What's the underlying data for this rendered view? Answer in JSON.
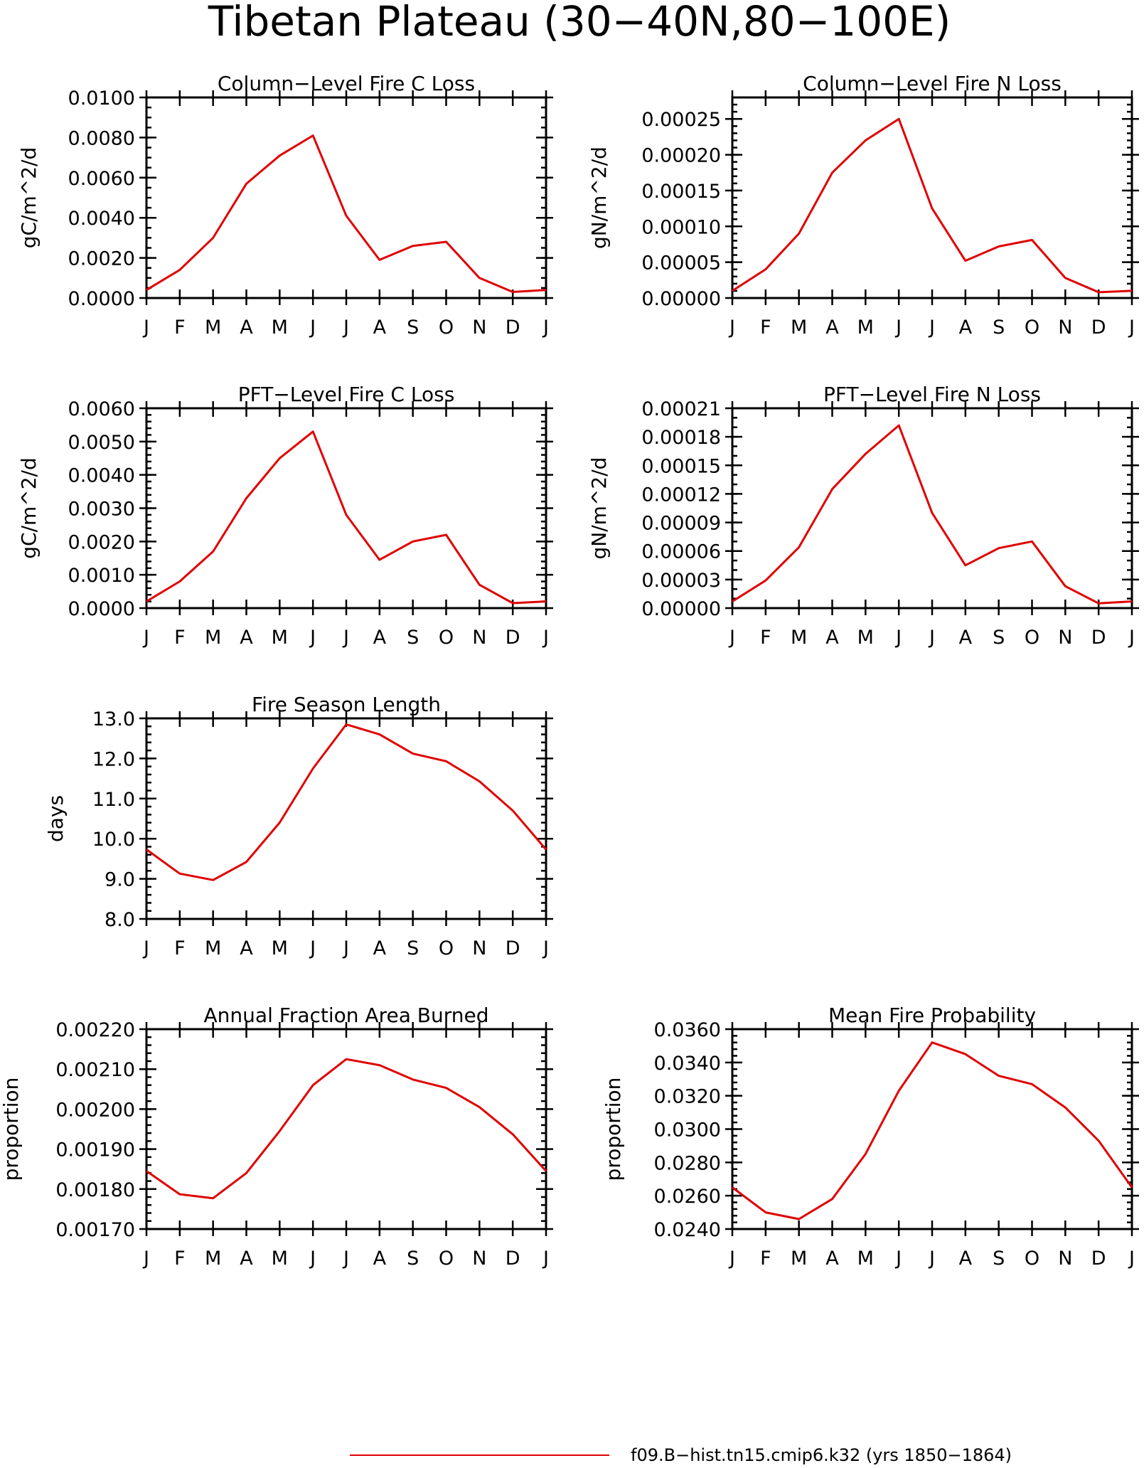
{
  "figure": {
    "title": "Tibetan Plateau (30−40N,80−100E)",
    "legend": {
      "label": "f09.B−hist.tn15.cmip6.k32 (yrs 1850−1864)",
      "color": "#e00000"
    }
  },
  "chart_data": [
    {
      "type": "line",
      "title": "Column−Level Fire C Loss",
      "xlabel": "",
      "ylabel": "gC/m^2/d",
      "categories": [
        "J",
        "F",
        "M",
        "A",
        "M",
        "J",
        "J",
        "A",
        "S",
        "O",
        "N",
        "D",
        "J"
      ],
      "yticks": [
        "0.0000",
        "0.0020",
        "0.0040",
        "0.0060",
        "0.0080",
        "0.0100"
      ],
      "ylim": [
        0,
        0.01
      ],
      "minor_step": 0.0005,
      "series": [
        {
          "values": [
            0.0004,
            0.0014,
            0.003,
            0.0057,
            0.0071,
            0.0081,
            0.0041,
            0.0019,
            0.0026,
            0.0028,
            0.001,
            0.0003,
            0.0004
          ]
        }
      ]
    },
    {
      "type": "line",
      "title": "Column−Level Fire N Loss",
      "xlabel": "",
      "ylabel": "gN/m^2/d",
      "categories": [
        "J",
        "F",
        "M",
        "A",
        "M",
        "J",
        "J",
        "A",
        "S",
        "O",
        "N",
        "D",
        "J"
      ],
      "yticks": [
        "0.00000",
        "0.00005",
        "0.00010",
        "0.00015",
        "0.00020",
        "0.00025"
      ],
      "ylim": [
        0,
        0.00028
      ],
      "minor_step": 1e-05,
      "series": [
        {
          "values": [
            1e-05,
            4e-05,
            9e-05,
            0.000175,
            0.00022,
            0.00025,
            0.000125,
            5.2e-05,
            7.2e-05,
            8.1e-05,
            2.8e-05,
            8e-06,
            1e-05
          ]
        }
      ]
    },
    {
      "type": "line",
      "title": "PFT−Level Fire C Loss",
      "xlabel": "",
      "ylabel": "gC/m^2/d",
      "categories": [
        "J",
        "F",
        "M",
        "A",
        "M",
        "J",
        "J",
        "A",
        "S",
        "O",
        "N",
        "D",
        "J"
      ],
      "yticks": [
        "0.0000",
        "0.0010",
        "0.0020",
        "0.0030",
        "0.0040",
        "0.0050",
        "0.0060"
      ],
      "ylim": [
        0,
        0.006
      ],
      "minor_step": 0.0002,
      "series": [
        {
          "values": [
            0.0002,
            0.0008,
            0.0017,
            0.0033,
            0.0045,
            0.0053,
            0.0028,
            0.00145,
            0.002,
            0.0022,
            0.0007,
            0.00015,
            0.0002
          ]
        }
      ]
    },
    {
      "type": "line",
      "title": "PFT−Level Fire N Loss",
      "xlabel": "",
      "ylabel": "gN/m^2/d",
      "categories": [
        "J",
        "F",
        "M",
        "A",
        "M",
        "J",
        "J",
        "A",
        "S",
        "O",
        "N",
        "D",
        "J"
      ],
      "yticks": [
        "0.00000",
        "0.00003",
        "0.00006",
        "0.00009",
        "0.00012",
        "0.00015",
        "0.00018",
        "0.00021"
      ],
      "ylim": [
        0,
        0.00021
      ],
      "minor_step": 1e-05,
      "series": [
        {
          "values": [
            7e-06,
            2.9e-05,
            6.4e-05,
            0.000125,
            0.000162,
            0.000192,
            0.0001,
            4.5e-05,
            6.3e-05,
            7e-05,
            2.3e-05,
            5e-06,
            7e-06
          ]
        }
      ]
    },
    {
      "type": "line",
      "title": "Fire Season Length",
      "xlabel": "",
      "ylabel": "days",
      "categories": [
        "J",
        "F",
        "M",
        "A",
        "M",
        "J",
        "J",
        "A",
        "S",
        "O",
        "N",
        "D",
        "J"
      ],
      "yticks": [
        "8.0",
        "9.0",
        "10.0",
        "11.0",
        "12.0",
        "13.0"
      ],
      "ylim": [
        8,
        13
      ],
      "minor_step": 0.2,
      "series": [
        {
          "values": [
            9.73,
            9.13,
            8.97,
            9.42,
            10.4,
            11.75,
            12.85,
            12.6,
            12.12,
            11.93,
            11.43,
            10.7,
            9.73
          ]
        }
      ]
    },
    {
      "type": "line",
      "title": "Annual Fraction Area Burned",
      "xlabel": "",
      "ylabel": "proportion",
      "categories": [
        "J",
        "F",
        "M",
        "A",
        "M",
        "J",
        "J",
        "A",
        "S",
        "O",
        "N",
        "D",
        "J"
      ],
      "yticks": [
        "0.00170",
        "0.00180",
        "0.00190",
        "0.00200",
        "0.00210",
        "0.00220"
      ],
      "ylim": [
        0.0017,
        0.0022
      ],
      "minor_step": 2e-05,
      "series": [
        {
          "values": [
            0.001845,
            0.001787,
            0.001777,
            0.00184,
            0.001945,
            0.00206,
            0.002125,
            0.00211,
            0.002074,
            0.002053,
            0.002005,
            0.001937,
            0.001845
          ]
        }
      ]
    },
    {
      "type": "line",
      "title": "Mean Fire Probability",
      "xlabel": "",
      "ylabel": "proportion",
      "categories": [
        "J",
        "F",
        "M",
        "A",
        "M",
        "J",
        "J",
        "A",
        "S",
        "O",
        "N",
        "D",
        "J"
      ],
      "yticks": [
        "0.0240",
        "0.0260",
        "0.0280",
        "0.0300",
        "0.0320",
        "0.0340",
        "0.0360"
      ],
      "ylim": [
        0.024,
        0.036
      ],
      "minor_step": 0.0004,
      "series": [
        {
          "values": [
            0.0265,
            0.025,
            0.0246,
            0.0258,
            0.0285,
            0.0323,
            0.0352,
            0.0345,
            0.0332,
            0.0327,
            0.0313,
            0.0293,
            0.0265
          ]
        }
      ]
    }
  ]
}
